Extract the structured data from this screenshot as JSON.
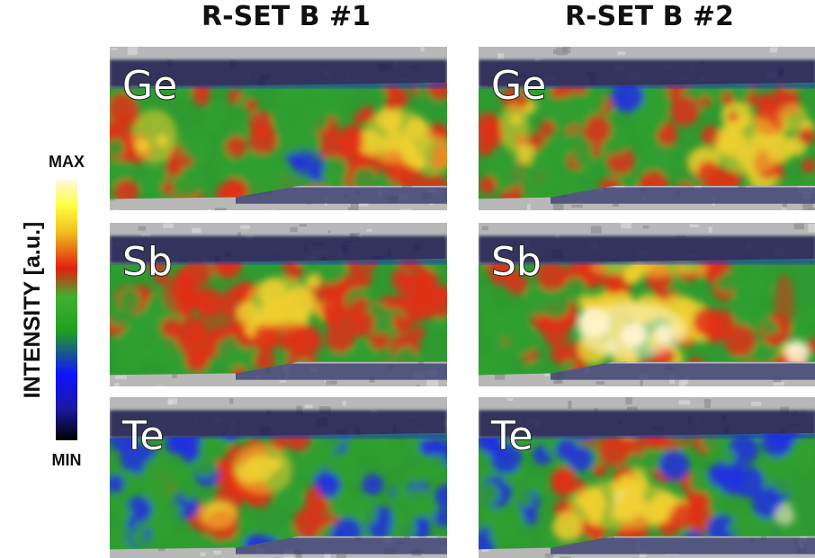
{
  "columns": [
    "R-SET B #1",
    "R-SET B #2"
  ],
  "rows": [
    "Ge",
    "Sb",
    "Te"
  ],
  "colorbar": {
    "label": "INTENSITY [a.u.]",
    "max": "MAX",
    "min": "MIN"
  }
}
